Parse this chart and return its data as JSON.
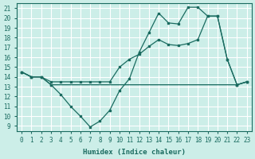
{
  "background_color": "#cceee8",
  "grid_color": "#ffffff",
  "line_color": "#1a6b60",
  "marker_color": "#1a6b60",
  "xlabel": "Humidex (Indice chaleur)",
  "xlim": [
    -0.5,
    23.5
  ],
  "ylim": [
    8.5,
    21.5
  ],
  "xticks": [
    0,
    1,
    2,
    3,
    4,
    5,
    6,
    7,
    8,
    9,
    10,
    11,
    12,
    13,
    14,
    15,
    16,
    17,
    18,
    19,
    20,
    21,
    22,
    23
  ],
  "yticks": [
    9,
    10,
    11,
    12,
    13,
    14,
    15,
    16,
    17,
    18,
    19,
    20,
    21
  ],
  "line1_x": [
    0,
    1,
    2,
    3,
    4,
    5,
    6,
    7,
    8,
    9,
    10,
    11,
    12,
    13,
    14,
    15,
    16,
    17,
    18,
    19,
    20,
    21,
    22,
    23
  ],
  "line1_y": [
    14.5,
    14.0,
    14.0,
    13.2,
    12.2,
    11.0,
    10.0,
    8.9,
    9.5,
    10.6,
    12.6,
    13.8,
    16.5,
    18.5,
    20.5,
    19.5,
    19.4,
    21.1,
    21.1,
    20.2,
    20.2,
    15.8,
    13.2,
    13.5
  ],
  "line2_x": [
    0,
    1,
    2,
    3,
    22,
    23
  ],
  "line2_y": [
    14.5,
    14.0,
    14.0,
    13.2,
    13.2,
    13.5
  ],
  "line3_x": [
    0,
    1,
    2,
    3,
    4,
    5,
    6,
    7,
    8,
    9,
    10,
    11,
    12,
    13,
    14,
    15,
    16,
    17,
    18,
    19,
    20,
    21,
    22,
    23
  ],
  "line3_y": [
    14.5,
    14.0,
    14.0,
    13.5,
    13.5,
    13.5,
    13.5,
    13.5,
    13.5,
    13.5,
    15.0,
    15.8,
    16.3,
    17.1,
    17.8,
    17.3,
    17.2,
    17.4,
    17.8,
    20.2,
    20.2,
    15.8,
    13.2,
    13.5
  ]
}
